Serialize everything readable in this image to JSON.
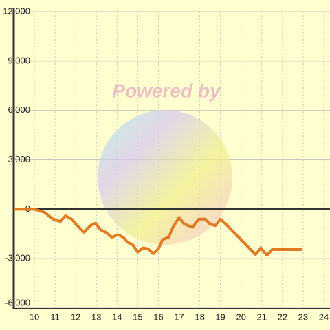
{
  "chart_data": {
    "type": "line",
    "watermark": "Powered by",
    "x": [
      9,
      10,
      10.5,
      10.9,
      11.25,
      11.5,
      11.8,
      12,
      12.4,
      12.7,
      12.95,
      13.2,
      13.45,
      13.75,
      14.05,
      14.3,
      14.5,
      14.75,
      15,
      15.25,
      15.5,
      15.75,
      16,
      16.2,
      16.5,
      16.7,
      17,
      17.25,
      17.65,
      17.95,
      18.25,
      18.5,
      18.75,
      19,
      19.3,
      19.65,
      20.7,
      20.95,
      21.25,
      21.5,
      21.95,
      22.95
    ],
    "series": [
      {
        "color": "#e07b24",
        "values": [
          0,
          0,
          -200,
          -600,
          -750,
          -400,
          -600,
          -900,
          -1400,
          -1000,
          -850,
          -1250,
          -1400,
          -1700,
          -1550,
          -1700,
          -2000,
          -2150,
          -2600,
          -2350,
          -2400,
          -2700,
          -2400,
          -1850,
          -1700,
          -1100,
          -500,
          -900,
          -1100,
          -600,
          -600,
          -900,
          -1000,
          -600,
          -950,
          -1400,
          -2750,
          -2350,
          -2800,
          -2450,
          -2450,
          -2450
        ]
      }
    ],
    "xlim": [
      9,
      24.3
    ],
    "xticks": [
      10,
      11,
      12,
      13,
      14,
      15,
      16,
      17,
      18,
      19,
      20,
      21,
      22,
      23,
      24
    ],
    "ylim": [
      -6000,
      12000
    ],
    "yticks": [
      {
        "value": -6000,
        "label": "-6,000"
      },
      {
        "value": -3000,
        "label": "-3,000"
      },
      0,
      {
        "value": 3000,
        "label": "3,000"
      },
      {
        "value": 6000,
        "label": "6,000"
      },
      {
        "value": 9000,
        "label": "9,000"
      },
      {
        "value": 12000,
        "label": "12,000"
      }
    ],
    "grid": true
  }
}
